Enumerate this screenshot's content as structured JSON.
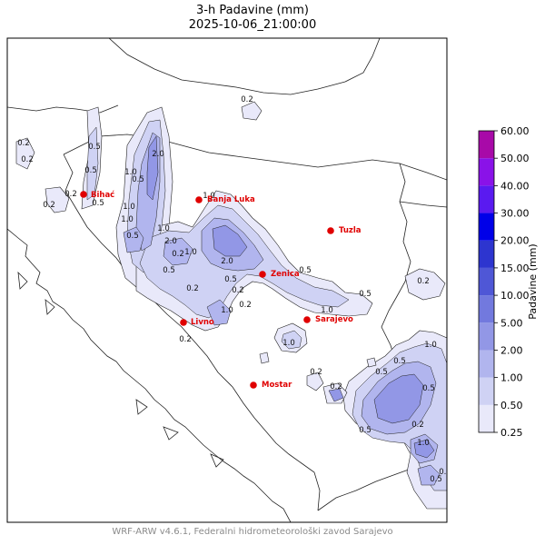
{
  "header": {
    "title": "3-h Padavine (mm)",
    "datetime": "2025-10-06_21:00:00"
  },
  "footer": {
    "credit": "WRF-ARW v4.6.1, Federalni hidrometeorološki zavod Sarajevo"
  },
  "colorbar": {
    "label": "Padavine (mm)",
    "levels": [
      "0.25",
      "0.50",
      "1.00",
      "2.00",
      "5.00",
      "10.00",
      "15.00",
      "20.00",
      "30.00",
      "40.00",
      "50.00",
      "60.00"
    ],
    "colors": [
      "#e9e9fa",
      "#cfd2f4",
      "#b1b5ee",
      "#9297e6",
      "#7279de",
      "#4f57d6",
      "#2d35cf",
      "#0000e8",
      "#5a1af0",
      "#8a12e8",
      "#a80aa8"
    ]
  },
  "cities": [
    {
      "name": "Bihać",
      "color": "#e00000"
    },
    {
      "name": "Banja Luka",
      "color": "#e00000"
    },
    {
      "name": "Tuzla",
      "color": "#e00000"
    },
    {
      "name": "Zenica",
      "color": "#e00000"
    },
    {
      "name": "Livno",
      "color": "#e00000"
    },
    {
      "name": "Sarajevo",
      "color": "#e00000"
    },
    {
      "name": "Mostar",
      "color": "#e00000"
    }
  ],
  "contour_labels": [
    "0.2",
    "0.5",
    "0.2",
    "1.0",
    "2.0",
    "0.5",
    "1.0",
    "0.2",
    "0.5",
    "1.0",
    "0.5",
    "1.0",
    "0.2",
    "1.0",
    "2.0",
    "0.5",
    "0.2",
    "1.0",
    "2.0",
    "0.5",
    "0.2",
    "1.0",
    "0.5",
    "0.2",
    "0.5",
    "0.2",
    "0.2",
    "0.5",
    "1.0",
    "0.2",
    "0.2",
    "1.0",
    "0.5",
    "0.5",
    "1.0",
    "0.2",
    "0.5",
    "0.2",
    "0.5",
    "1.0",
    "0.2",
    "0.5",
    "0.5"
  ],
  "colors": {
    "map_border": "#000000",
    "city_marker": "#e00000",
    "footer_text": "#8a8a8a"
  }
}
